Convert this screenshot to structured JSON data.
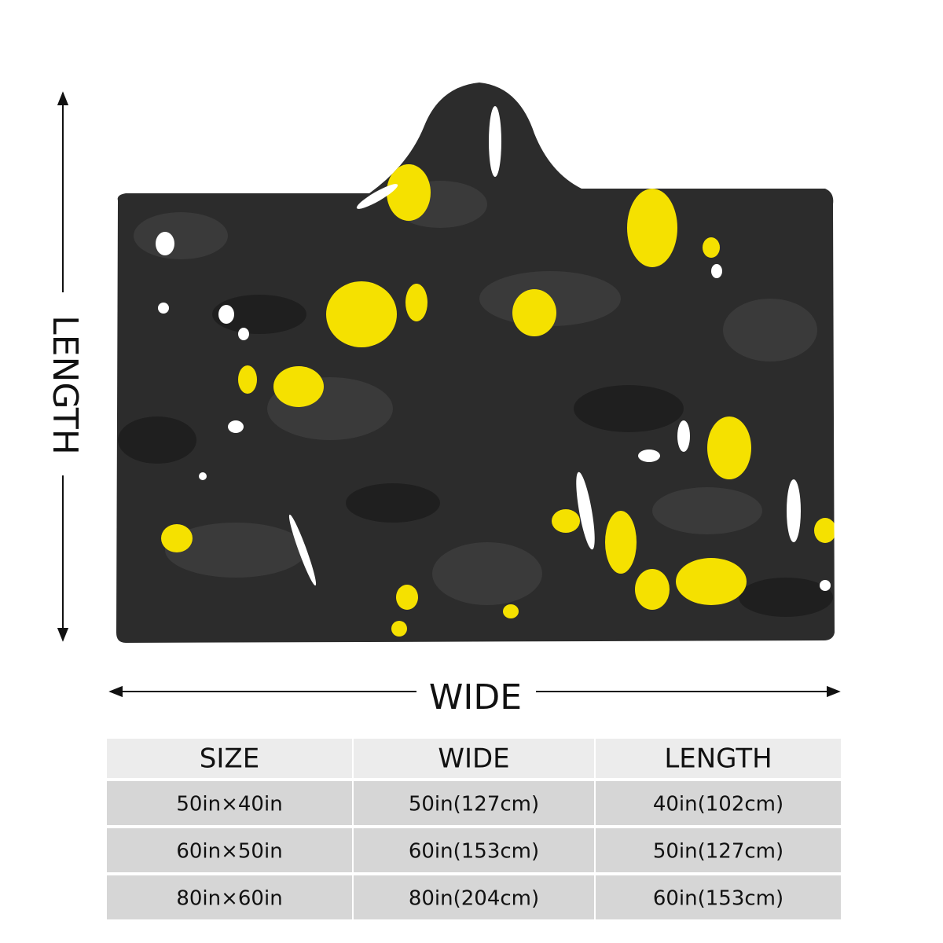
{
  "labels": {
    "length": "LENGTH",
    "wide": "WIDE"
  },
  "table": {
    "header": [
      "SIZE",
      "WIDE",
      "LENGTH"
    ],
    "rows": [
      [
        "50in×40in",
        "50in(127cm)",
        "40in(102cm)"
      ],
      [
        "60in×50in",
        "60in(153cm)",
        "50in(127cm)"
      ],
      [
        "80in×60in",
        "80in(204cm)",
        "60in(153cm)"
      ]
    ]
  }
}
